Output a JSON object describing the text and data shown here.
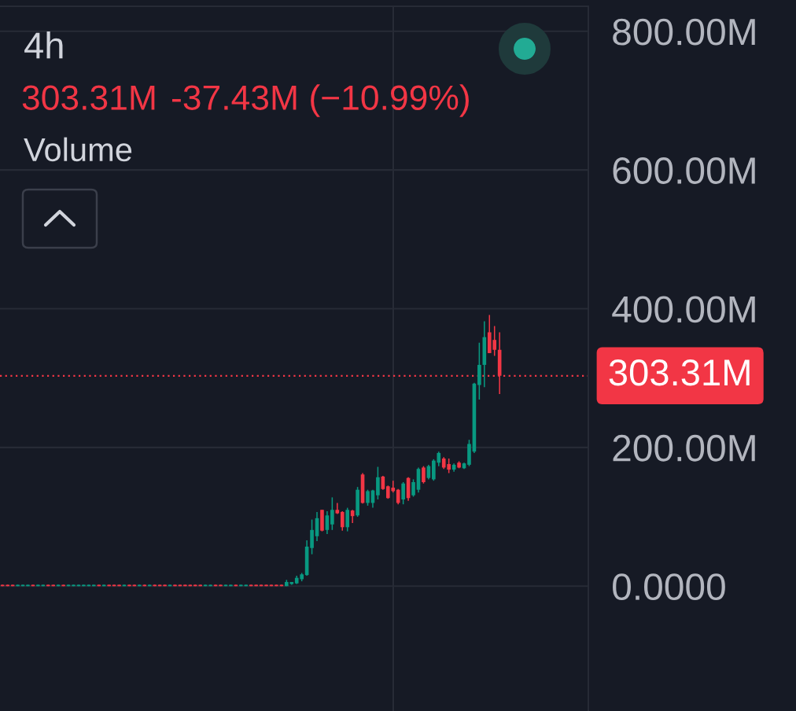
{
  "chart_data": {
    "type": "candlestick",
    "title": "4h",
    "annotations": [
      "303.31M",
      "-37.43M (−10.99%)",
      "Volume"
    ],
    "categories": [
      null,
      null,
      null,
      null,
      null,
      null,
      null,
      null,
      null,
      null,
      null,
      null,
      null,
      null,
      null,
      null,
      null,
      null,
      null,
      null,
      null,
      null,
      null,
      null,
      null,
      null,
      null,
      null,
      null,
      null,
      null,
      null,
      null,
      null,
      null,
      null,
      null,
      null,
      null,
      null,
      null,
      null,
      null,
      null,
      null,
      null,
      null,
      null,
      null,
      null,
      null,
      null,
      null,
      null,
      null,
      null,
      null,
      null,
      null,
      null,
      null,
      null,
      null,
      null,
      null,
      null,
      null,
      null,
      null,
      null,
      null,
      null,
      null,
      null,
      null,
      null,
      null,
      null,
      null,
      null,
      null,
      null,
      null,
      null,
      null,
      null,
      null,
      null,
      null,
      null,
      null,
      null,
      null,
      null,
      null,
      null,
      null,
      null,
      null,
      null,
      null,
      null,
      null,
      null,
      null,
      null,
      null,
      null,
      null,
      null,
      null,
      null,
      null,
      null,
      null,
      null
    ],
    "ohlc": [
      [
        2,
        2,
        0,
        0
      ],
      [
        2,
        2,
        0,
        0
      ],
      [
        2,
        2,
        0,
        0
      ],
      [
        0,
        2,
        0,
        2
      ],
      [
        0,
        2,
        0,
        2
      ],
      [
        0,
        2,
        0,
        2
      ],
      [
        2,
        2,
        0,
        0
      ],
      [
        0,
        2,
        0,
        2
      ],
      [
        0,
        2,
        0,
        2
      ],
      [
        2,
        2,
        0,
        0
      ],
      [
        2,
        2,
        0,
        0
      ],
      [
        0,
        2,
        0,
        2
      ],
      [
        2,
        2,
        0,
        0
      ],
      [
        0,
        2,
        0,
        2
      ],
      [
        0,
        2,
        0,
        2
      ],
      [
        0,
        2,
        0,
        2
      ],
      [
        0,
        2,
        0,
        2
      ],
      [
        0,
        2,
        0,
        2
      ],
      [
        0,
        2,
        0,
        2
      ],
      [
        2,
        2,
        0,
        0
      ],
      [
        0,
        2,
        0,
        2
      ],
      [
        2,
        2,
        0,
        0
      ],
      [
        2,
        2,
        0,
        0
      ],
      [
        2,
        2,
        0,
        0
      ],
      [
        0,
        2,
        0,
        2
      ],
      [
        2,
        2,
        0,
        0
      ],
      [
        2,
        2,
        0,
        0
      ],
      [
        0,
        2,
        0,
        2
      ],
      [
        2,
        2,
        0,
        0
      ],
      [
        0,
        2,
        0,
        2
      ],
      [
        2,
        2,
        0,
        0
      ],
      [
        2,
        2,
        0,
        0
      ],
      [
        2,
        2,
        0,
        0
      ],
      [
        0,
        2,
        0,
        2
      ],
      [
        2,
        2,
        0,
        0
      ],
      [
        2,
        2,
        0,
        0
      ],
      [
        2,
        2,
        0,
        0
      ],
      [
        2,
        2,
        0,
        0
      ],
      [
        2,
        2,
        0,
        0
      ],
      [
        2,
        2,
        0,
        0
      ],
      [
        0,
        2,
        0,
        2
      ],
      [
        0,
        2,
        0,
        2
      ],
      [
        2,
        2,
        0,
        0
      ],
      [
        2,
        2,
        0,
        0
      ],
      [
        0,
        2,
        0,
        2
      ],
      [
        0,
        2,
        0,
        2
      ],
      [
        2,
        2,
        0,
        0
      ],
      [
        0,
        2,
        0,
        2
      ],
      [
        0,
        2,
        0,
        2
      ],
      [
        2,
        2,
        0,
        0
      ],
      [
        2,
        2,
        0,
        0
      ],
      [
        2,
        2,
        0,
        0
      ],
      [
        2,
        2,
        0,
        0
      ],
      [
        2,
        2,
        0,
        0
      ],
      [
        2,
        2,
        0,
        0
      ],
      [
        2,
        2,
        0,
        0
      ],
      [
        0,
        9,
        0,
        6
      ],
      [
        3,
        6,
        2,
        6
      ],
      [
        4,
        15,
        3,
        12
      ],
      [
        10,
        19,
        7,
        17
      ],
      [
        16,
        66,
        15,
        57
      ],
      [
        55,
        96,
        46,
        81
      ],
      [
        72,
        107,
        65,
        98
      ],
      [
        110,
        110,
        79,
        80
      ],
      [
        81,
        108,
        75,
        102
      ],
      [
        89,
        128,
        81,
        110
      ],
      [
        110,
        120,
        104,
        105
      ],
      [
        107,
        108,
        80,
        85
      ],
      [
        85,
        113,
        79,
        110
      ],
      [
        109,
        110,
        91,
        101
      ],
      [
        102,
        143,
        100,
        139
      ],
      [
        161,
        163,
        119,
        120
      ],
      [
        120,
        139,
        116,
        137
      ],
      [
        120,
        139,
        113,
        138
      ],
      [
        131,
        172,
        125,
        157
      ],
      [
        158,
        159,
        139,
        140
      ],
      [
        144,
        145,
        126,
        127
      ],
      [
        142,
        152,
        135,
        137
      ],
      [
        139,
        140,
        118,
        120
      ],
      [
        125,
        150,
        118,
        148
      ],
      [
        156,
        157,
        123,
        127
      ],
      [
        131,
        154,
        129,
        150
      ],
      [
        139,
        171,
        135,
        169
      ],
      [
        171,
        173,
        148,
        150
      ],
      [
        156,
        175,
        154,
        173
      ],
      [
        154,
        183,
        152,
        181
      ],
      [
        178,
        194,
        173,
        192
      ],
      [
        184,
        186,
        169,
        171
      ],
      [
        176,
        184,
        163,
        168
      ],
      [
        168,
        177,
        165,
        175
      ],
      [
        178,
        180,
        170,
        171
      ],
      [
        170,
        178,
        169,
        177
      ],
      [
        175,
        211,
        173,
        205
      ],
      [
        194,
        293,
        192,
        292
      ],
      [
        290,
        351,
        269,
        319
      ],
      [
        319,
        382,
        287,
        359
      ],
      [
        366,
        391,
        336,
        336
      ],
      [
        355,
        375,
        332,
        340.74
      ],
      [
        340.74,
        366,
        277,
        303.31
      ],
      null,
      null,
      null,
      null,
      null,
      null,
      null,
      null,
      null,
      null,
      null,
      null,
      null,
      null,
      null,
      null,
      null
    ],
    "colors": [
      "#f23645",
      "#f23645",
      "#f23645",
      "#089981",
      "#089981",
      "#089981",
      "#f23645",
      "#089981",
      "#089981",
      "#f23645",
      "#f23645",
      "#089981",
      "#f23645",
      "#089981",
      "#089981",
      "#089981",
      "#089981",
      "#089981",
      "#089981",
      "#f23645",
      "#089981",
      "#f23645",
      "#f23645",
      "#f23645",
      "#089981",
      "#f23645",
      "#f23645",
      "#089981",
      "#f23645",
      "#089981",
      "#f23645",
      "#f23645",
      "#f23645",
      "#089981",
      "#f23645",
      "#f23645",
      "#f23645",
      "#f23645",
      "#f23645",
      "#f23645",
      "#089981",
      "#089981",
      "#f23645",
      "#f23645",
      "#089981",
      "#089981",
      "#f23645",
      "#089981",
      "#089981",
      "#f23645",
      "#f23645",
      "#f23645",
      "#f23645",
      "#f23645",
      "#f23645",
      "#f23645",
      "#089981",
      "#089981",
      "#089981",
      "#089981",
      "#089981",
      "#089981",
      "#089981",
      "#f23645",
      "#089981",
      "#089981",
      "#f23645",
      "#f23645",
      "#089981",
      "#f23645",
      "#089981",
      "#f23645",
      "#089981",
      "#089981",
      "#089981",
      "#f23645",
      "#f23645",
      "#f23645",
      "#f23645",
      "#089981",
      "#f23645",
      "#089981",
      "#089981",
      "#f23645",
      "#089981",
      "#089981",
      "#089981",
      "#f23645",
      "#f23645",
      "#089981",
      "#f23645",
      "#089981",
      "#089981",
      "#089981",
      "#089981",
      "#089981",
      "#f23645",
      "#f23645",
      "#f23645",
      null,
      null,
      null,
      null,
      null,
      null,
      null,
      null,
      null,
      null,
      null,
      null,
      null,
      null,
      null,
      null,
      null
    ],
    "ylim": [
      -180,
      836
    ],
    "yticks": [
      {
        "value": 0,
        "label": "0.0000"
      },
      {
        "value": 200,
        "label": "200.00M"
      },
      {
        "value": 400,
        "label": "400.00M"
      },
      {
        "value": 600,
        "label": "600.00M"
      },
      {
        "value": 800,
        "label": "800.00M"
      }
    ],
    "ref_lines": [
      {
        "axis": "y",
        "value": 303.31,
        "label": "303.31M",
        "color": "#f23645",
        "line_style": "dotted"
      }
    ],
    "grid": "y",
    "tick_labels": "y"
  }
}
